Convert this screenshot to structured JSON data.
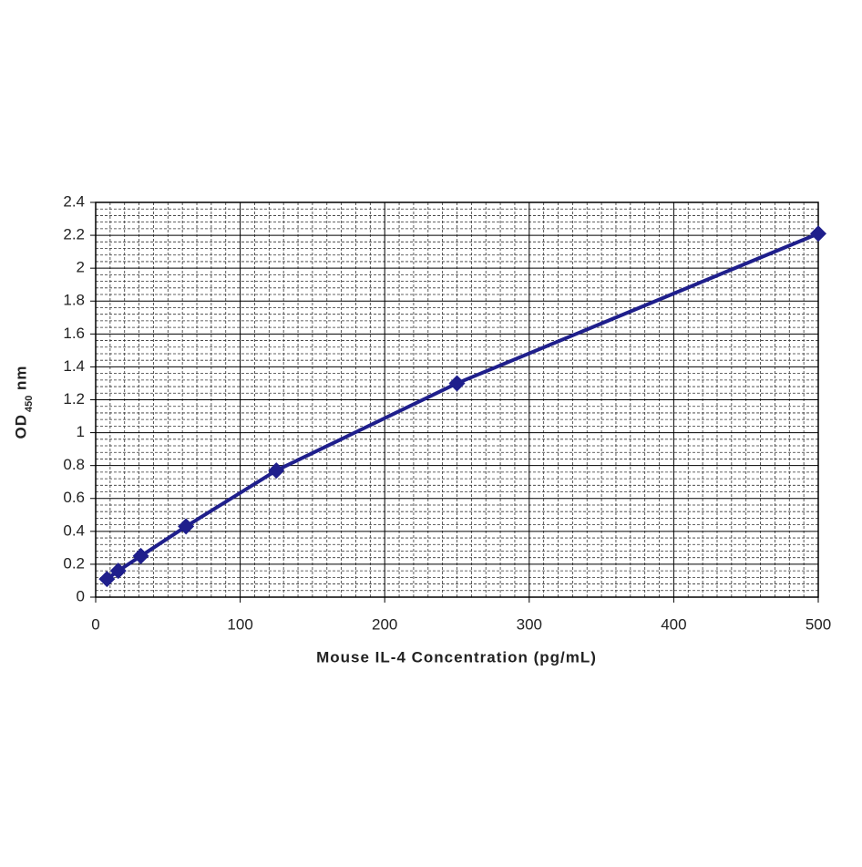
{
  "chart_data": {
    "type": "line",
    "x_label": "Mouse IL-4 Concentration (pg/mL)",
    "y_label": "OD",
    "y_label_sub": "450",
    "y_label_suffix": "nm",
    "x": [
      7.8,
      15.6,
      31.25,
      62.5,
      125,
      250,
      500
    ],
    "series": [
      {
        "color": "#1f1f8c",
        "values": [
          0.11,
          0.16,
          0.25,
          0.43,
          0.77,
          1.3,
          2.21
        ]
      }
    ],
    "xlim": [
      0,
      500
    ],
    "xticks": [
      0,
      100,
      200,
      300,
      400,
      500
    ],
    "ylim": [
      0,
      2.4
    ],
    "yticks": [
      0,
      0.2,
      0.4,
      0.6,
      0.8,
      1,
      1.2,
      1.4,
      1.6,
      1.8,
      2,
      2.2,
      2.4
    ],
    "grid": true,
    "minor_grid_divisions": [
      10,
      5
    ]
  }
}
